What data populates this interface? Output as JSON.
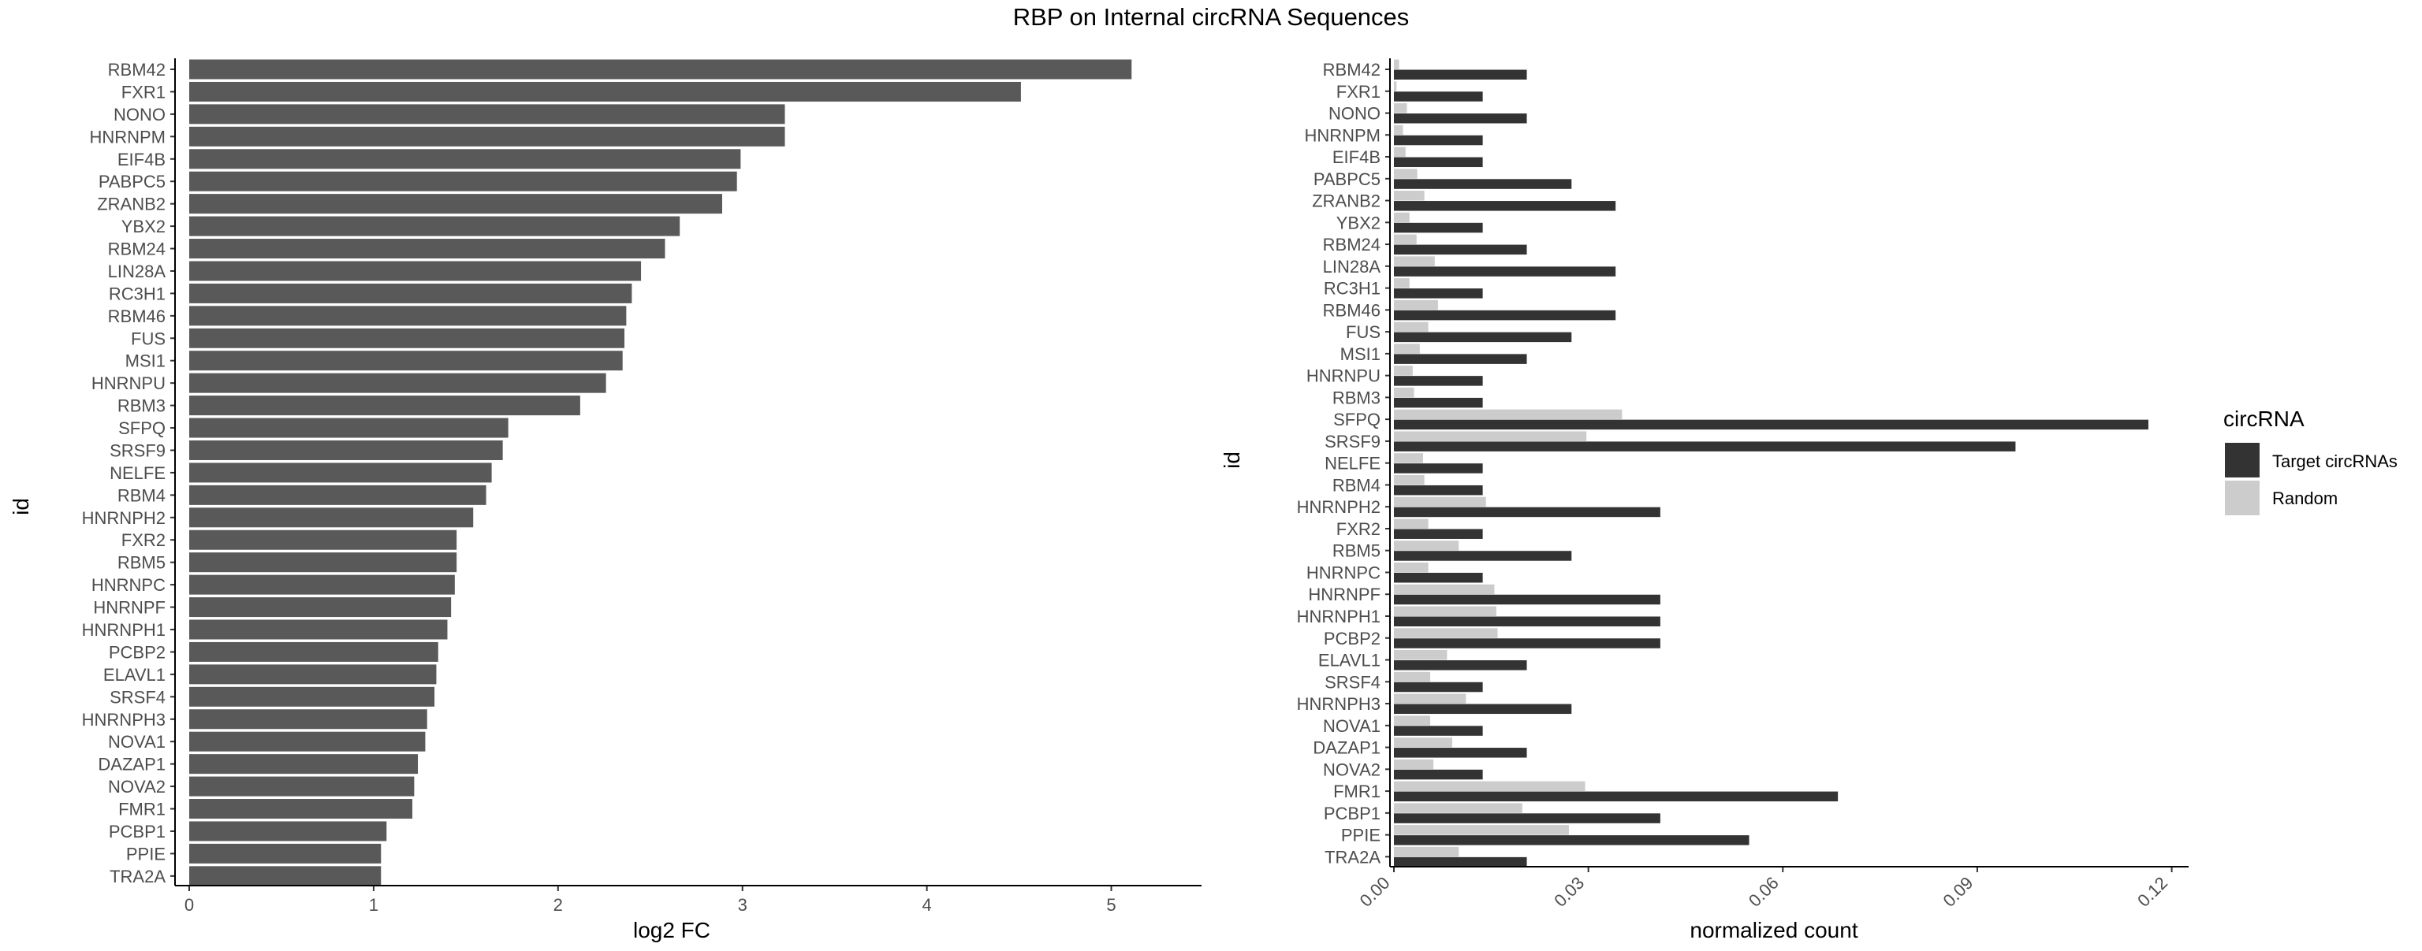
{
  "title": "RBP on Internal circRNA Sequences",
  "colors": {
    "bar_left": "#595959",
    "target": "#333333",
    "random": "#cccccc",
    "axis": "#000000",
    "tick_label": "#4d4d4d"
  },
  "chart_data": [
    {
      "type": "bar",
      "orientation": "horizontal",
      "xlabel": "log2 FC",
      "ylabel": "id",
      "xlim": [
        0,
        5.25
      ],
      "xticks": [
        "0",
        "1",
        "2",
        "3",
        "4",
        "5"
      ],
      "grid": false,
      "categories": [
        "RBM42",
        "FXR1",
        "NONO",
        "HNRNPM",
        "EIF4B",
        "PABPC5",
        "ZRANB2",
        "YBX2",
        "RBM24",
        "LIN28A",
        "RC3H1",
        "RBM46",
        "FUS",
        "MSI1",
        "HNRNPU",
        "RBM3",
        "SFPQ",
        "SRSF9",
        "NELFE",
        "RBM4",
        "HNRNPH2",
        "FXR2",
        "RBM5",
        "HNRNPC",
        "HNRNPF",
        "HNRNPH1",
        "PCBP2",
        "ELAVL1",
        "SRSF4",
        "HNRNPH3",
        "NOVA1",
        "DAZAP1",
        "NOVA2",
        "FMR1",
        "PCBP1",
        "PPIE",
        "TRA2A"
      ],
      "values": [
        5.11,
        4.51,
        3.23,
        3.23,
        2.99,
        2.97,
        2.89,
        2.66,
        2.58,
        2.45,
        2.4,
        2.37,
        2.36,
        2.35,
        2.26,
        2.12,
        1.73,
        1.7,
        1.64,
        1.61,
        1.54,
        1.45,
        1.45,
        1.44,
        1.42,
        1.4,
        1.35,
        1.34,
        1.33,
        1.29,
        1.28,
        1.24,
        1.22,
        1.21,
        1.07,
        1.04,
        1.04
      ]
    },
    {
      "type": "bar",
      "orientation": "horizontal",
      "grouped": true,
      "xlabel": "normalized count",
      "ylabel": "id",
      "xlim": [
        0,
        0.122
      ],
      "xticks": [
        "0.00",
        "0.03",
        "0.06",
        "0.09",
        "0.12"
      ],
      "grid": false,
      "legend": {
        "title": "circRNA",
        "position": "right"
      },
      "categories": [
        "RBM42",
        "FXR1",
        "NONO",
        "HNRNPM",
        "EIF4B",
        "PABPC5",
        "ZRANB2",
        "YBX2",
        "RBM24",
        "LIN28A",
        "RC3H1",
        "RBM46",
        "FUS",
        "MSI1",
        "HNRNPU",
        "RBM3",
        "SFPQ",
        "SRSF9",
        "NELFE",
        "RBM4",
        "HNRNPH2",
        "FXR2",
        "RBM5",
        "HNRNPC",
        "HNRNPF",
        "HNRNPH1",
        "PCBP2",
        "ELAVL1",
        "SRSF4",
        "HNRNPH3",
        "NOVA1",
        "DAZAP1",
        "NOVA2",
        "FMR1",
        "PCBP1",
        "PPIE",
        "TRA2A"
      ],
      "series": [
        {
          "name": "Target circRNAs",
          "values": [
            0.0205,
            0.0137,
            0.0205,
            0.0137,
            0.0137,
            0.0274,
            0.0342,
            0.0137,
            0.0205,
            0.0342,
            0.0137,
            0.0342,
            0.0274,
            0.0205,
            0.0137,
            0.0137,
            0.1164,
            0.0959,
            0.0137,
            0.0137,
            0.0411,
            0.0137,
            0.0274,
            0.0137,
            0.0411,
            0.0411,
            0.0411,
            0.0205,
            0.0137,
            0.0274,
            0.0137,
            0.0205,
            0.0137,
            0.0685,
            0.0411,
            0.0548,
            0.0205
          ]
        },
        {
          "name": "Random",
          "values": [
            0.0008,
            0.0004,
            0.002,
            0.0014,
            0.0018,
            0.0036,
            0.0047,
            0.0024,
            0.0035,
            0.0063,
            0.0024,
            0.0068,
            0.0053,
            0.004,
            0.0029,
            0.0031,
            0.0352,
            0.0297,
            0.0045,
            0.0047,
            0.0142,
            0.0053,
            0.01,
            0.0053,
            0.0155,
            0.0158,
            0.016,
            0.0082,
            0.0056,
            0.0111,
            0.0056,
            0.009,
            0.0061,
            0.0295,
            0.0198,
            0.027,
            0.01
          ]
        }
      ]
    }
  ]
}
